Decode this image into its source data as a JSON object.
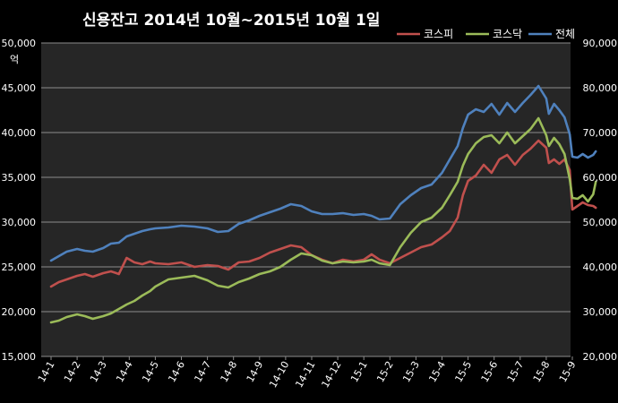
{
  "chart_data": {
    "type": "line",
    "title": "신용잔고 2014년 10월~2015년 10월 1일",
    "ylabel": "억",
    "y_left": {
      "min": 15000,
      "max": 50000,
      "step": 5000,
      "tick_labels": [
        "15,000",
        "20,000",
        "25,000",
        "30,000",
        "35,000",
        "40,000",
        "45,000",
        "50,000"
      ]
    },
    "y_right": {
      "min": 20000,
      "max": 90000,
      "step": 10000,
      "tick_labels": [
        "20,000",
        "30,000",
        "40,000",
        "50,000",
        "60,000",
        "70,000",
        "80,000",
        "90,000"
      ]
    },
    "grid": true,
    "legend_position": "top-right",
    "categories": [
      "14-1",
      "14-2",
      "14-3",
      "14-4",
      "14-5",
      "14-6",
      "14-7",
      "14-8",
      "14-9",
      "14-10",
      "14-11",
      "14-12",
      "15-1",
      "15-2",
      "15-3",
      "15-4",
      "15-5",
      "15-6",
      "15-7",
      "15-8",
      "15-9"
    ],
    "series": [
      {
        "name": "코스피",
        "color": "#c0504d",
        "axis": "left",
        "x": [
          0,
          0.3,
          0.6,
          1.0,
          1.3,
          1.6,
          2.0,
          2.3,
          2.6,
          2.9,
          3.2,
          3.5,
          3.8,
          4.0,
          4.5,
          5.0,
          5.5,
          6.0,
          6.4,
          6.8,
          7.2,
          7.6,
          8.0,
          8.4,
          8.8,
          9.2,
          9.6,
          10.0,
          10.4,
          10.8,
          11.2,
          11.6,
          12.0,
          12.3,
          12.6,
          13.0,
          13.4,
          13.8,
          14.2,
          14.6,
          15.0,
          15.3,
          15.6,
          15.8,
          16.0,
          16.3,
          16.6,
          16.9,
          17.2,
          17.5,
          17.8,
          18.1,
          18.4,
          18.7,
          19.0,
          19.1,
          19.3,
          19.5,
          19.7,
          19.9,
          20.0,
          20.2,
          20.4,
          20.6,
          20.8,
          20.9
        ],
        "values": [
          22800,
          23300,
          23600,
          24000,
          24200,
          23900,
          24300,
          24500,
          24200,
          26000,
          25500,
          25300,
          25600,
          25400,
          25300,
          25500,
          25000,
          25200,
          25100,
          24700,
          25500,
          25600,
          26000,
          26600,
          27000,
          27400,
          27200,
          26300,
          25800,
          25400,
          25800,
          25600,
          25800,
          26400,
          25800,
          25400,
          26000,
          26600,
          27200,
          27500,
          28300,
          29000,
          30500,
          33000,
          34600,
          35200,
          36400,
          35500,
          37000,
          37500,
          36400,
          37500,
          38200,
          39100,
          38300,
          36600,
          37000,
          36500,
          37000,
          35800,
          31400,
          31800,
          32200,
          31900,
          31800,
          31600
        ]
      },
      {
        "name": "코스닥",
        "color": "#9bbb59",
        "axis": "left",
        "x": [
          0,
          0.3,
          0.6,
          1.0,
          1.3,
          1.6,
          2.0,
          2.3,
          2.6,
          2.9,
          3.2,
          3.5,
          3.8,
          4.0,
          4.5,
          5.0,
          5.5,
          6.0,
          6.4,
          6.8,
          7.2,
          7.6,
          8.0,
          8.4,
          8.8,
          9.2,
          9.6,
          10.0,
          10.4,
          10.8,
          11.2,
          11.6,
          12.0,
          12.3,
          12.6,
          13.0,
          13.4,
          13.8,
          14.2,
          14.6,
          15.0,
          15.3,
          15.6,
          15.8,
          16.0,
          16.3,
          16.6,
          16.9,
          17.2,
          17.5,
          17.8,
          18.1,
          18.4,
          18.7,
          19.0,
          19.1,
          19.3,
          19.5,
          19.7,
          19.9,
          20.0,
          20.2,
          20.4,
          20.6,
          20.8,
          20.9
        ],
        "values": [
          18800,
          19000,
          19400,
          19700,
          19500,
          19200,
          19500,
          19800,
          20300,
          20800,
          21200,
          21800,
          22300,
          22800,
          23600,
          23800,
          24000,
          23500,
          22900,
          22700,
          23300,
          23700,
          24200,
          24500,
          25000,
          25800,
          26500,
          26300,
          25700,
          25400,
          25600,
          25500,
          25600,
          25800,
          25400,
          25200,
          27200,
          28800,
          30000,
          30500,
          31600,
          33000,
          34500,
          36300,
          37600,
          38800,
          39500,
          39700,
          38800,
          40000,
          38800,
          39600,
          40400,
          41600,
          39700,
          38500,
          39400,
          38700,
          37600,
          34800,
          32700,
          32600,
          33000,
          32300,
          33100,
          34500
        ]
      },
      {
        "name": "전체",
        "color": "#4f81bd",
        "axis": "left",
        "x": [
          0,
          0.3,
          0.6,
          1.0,
          1.3,
          1.6,
          2.0,
          2.3,
          2.6,
          2.9,
          3.2,
          3.5,
          3.8,
          4.0,
          4.5,
          5.0,
          5.5,
          6.0,
          6.4,
          6.8,
          7.2,
          7.6,
          8.0,
          8.4,
          8.8,
          9.2,
          9.6,
          10.0,
          10.4,
          10.8,
          11.2,
          11.6,
          12.0,
          12.3,
          12.6,
          13.0,
          13.4,
          13.8,
          14.2,
          14.6,
          15.0,
          15.3,
          15.6,
          15.8,
          16.0,
          16.3,
          16.6,
          16.9,
          17.2,
          17.5,
          17.8,
          18.1,
          18.4,
          18.7,
          19.0,
          19.1,
          19.3,
          19.5,
          19.7,
          19.9,
          20.0,
          20.2,
          20.4,
          20.6,
          20.8,
          20.9
        ],
        "values": [
          25700,
          26200,
          26700,
          27000,
          26800,
          26700,
          27100,
          27600,
          27700,
          28400,
          28700,
          29000,
          29200,
          29300,
          29400,
          29600,
          29500,
          29300,
          28900,
          29000,
          29800,
          30200,
          30700,
          31100,
          31500,
          32000,
          31800,
          31200,
          30900,
          30900,
          31000,
          30800,
          30900,
          30700,
          30300,
          30400,
          32000,
          33000,
          33800,
          34200,
          35500,
          37000,
          38500,
          40500,
          42000,
          42600,
          42300,
          43200,
          42000,
          43300,
          42300,
          43300,
          44200,
          45200,
          43800,
          42100,
          43200,
          42500,
          41700,
          39800,
          37300,
          37200,
          37600,
          37200,
          37500,
          37900
        ]
      }
    ]
  }
}
